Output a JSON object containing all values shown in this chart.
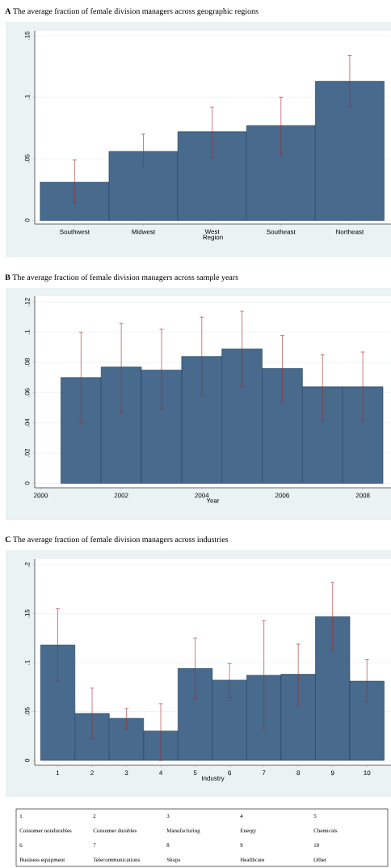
{
  "chart_data": [
    {
      "type": "bar",
      "title": "**A** The average fraction of female division managers across geographic regions",
      "xlabel": "Region",
      "categories": [
        "Southwest",
        "Midwest",
        "West",
        "Southeast",
        "Northeast"
      ],
      "values": [
        0.031,
        0.056,
        0.072,
        0.077,
        0.113
      ],
      "errors": [
        [
          0.014,
          0.049
        ],
        [
          0.043,
          0.07
        ],
        [
          0.051,
          0.092
        ],
        [
          0.053,
          0.1
        ],
        [
          0.092,
          0.134
        ]
      ],
      "color": "#486a8c",
      "ylim": [
        -0.003,
        0.154
      ],
      "yticks": [
        {
          "value": 0,
          "label": "0"
        },
        {
          "value": 0.05,
          "label": ".05"
        },
        {
          "value": 0.1,
          "label": ".1"
        },
        {
          "value": 0.15,
          "label": ".15"
        }
      ],
      "grid": "y"
    },
    {
      "type": "bar",
      "title": "**B** The average fraction of female division managers across sample years",
      "xlabel": "Year",
      "x": [
        2001,
        2002,
        2003,
        2004,
        2005,
        2006,
        2007,
        2008
      ],
      "values": [
        0.07,
        0.077,
        0.075,
        0.084,
        0.089,
        0.076,
        0.064,
        0.064
      ],
      "errors": [
        [
          0.04,
          0.1
        ],
        [
          0.047,
          0.106
        ],
        [
          0.049,
          0.102
        ],
        [
          0.058,
          0.11
        ],
        [
          0.064,
          0.114
        ],
        [
          0.054,
          0.098
        ],
        [
          0.042,
          0.085
        ],
        [
          0.042,
          0.087
        ]
      ],
      "color": "#486a8c",
      "xlim": [
        1999.85,
        2008.7
      ],
      "xticks": [
        2000,
        2002,
        2004,
        2006,
        2008
      ],
      "ylim": [
        -0.003,
        0.124
      ],
      "yticks": [
        {
          "value": 0,
          "label": "0"
        },
        {
          "value": 0.02,
          "label": ".02"
        },
        {
          "value": 0.04,
          "label": ".04"
        },
        {
          "value": 0.06,
          "label": ".06"
        },
        {
          "value": 0.08,
          "label": ".08"
        },
        {
          "value": 0.1,
          "label": ".1"
        },
        {
          "value": 0.12,
          "label": ".12"
        }
      ],
      "grid": "y"
    },
    {
      "type": "bar",
      "title": "**C** The average fraction of female division managers across industries",
      "xlabel": "Industry",
      "categories": [
        "1",
        "2",
        "3",
        "4",
        "5",
        "6",
        "7",
        "8",
        "9",
        "10"
      ],
      "values": [
        0.118,
        0.048,
        0.043,
        0.03,
        0.094,
        0.082,
        0.087,
        0.088,
        0.147,
        0.081
      ],
      "errors": [
        [
          0.081,
          0.155
        ],
        [
          0.022,
          0.074
        ],
        [
          0.032,
          0.053
        ],
        [
          0.0,
          0.058
        ],
        [
          0.063,
          0.125
        ],
        [
          0.064,
          0.099
        ],
        [
          0.032,
          0.143
        ],
        [
          0.056,
          0.119
        ],
        [
          0.113,
          0.182
        ],
        [
          0.06,
          0.103
        ]
      ],
      "color": "#486a8c",
      "ylim": [
        -0.005,
        0.206
      ],
      "yticks": [
        {
          "value": 0,
          "label": "0"
        },
        {
          "value": 0.05,
          "label": ".05"
        },
        {
          "value": 0.1,
          "label": ".1"
        },
        {
          "value": 0.15,
          "label": ".15"
        },
        {
          "value": 0.2,
          "label": ".2"
        }
      ],
      "grid": "y",
      "annotations": [
        "1",
        "2",
        "3",
        "4",
        "5",
        "Consumer nondurables",
        "Consumer durables",
        "Manufacturing",
        "Energy",
        "Chemicals",
        "6",
        "7",
        "8",
        "9",
        "10",
        "Business equipment",
        "Telecommunications",
        "Shops",
        "Healthcare",
        "Other"
      ]
    }
  ]
}
